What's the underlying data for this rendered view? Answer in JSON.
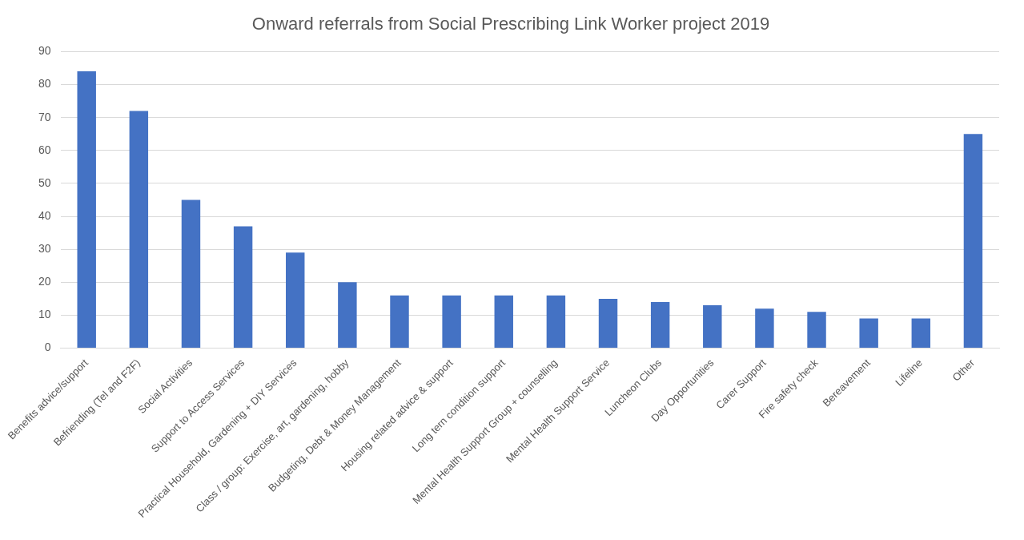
{
  "chart_data": {
    "type": "bar",
    "title": "Onward referrals from Social Prescribing Link Worker project 2019",
    "categories": [
      "Benefits advice/support",
      "Befriending (Tel and F2F)",
      "Social Activities",
      "Support to Access Services",
      "Practical Household, Gardening + DIY Services",
      "Class / group: Exercise, art, gardening, hobby",
      "Budgeting, Debt & Money Management",
      "Housing related advice & support",
      "Long tern condition support",
      "Mental Health Support Group + counselling",
      "Mental Health Support Service",
      "Luncheon Clubs",
      "Day Opportunities",
      "Carer Support",
      "Fire safety check",
      "Bereavement",
      "Lifeline",
      "Other"
    ],
    "values": [
      84,
      72,
      45,
      37,
      29,
      20,
      16,
      16,
      16,
      16,
      15,
      14,
      13,
      12,
      11,
      9,
      9,
      65
    ],
    "color": "#4472c4",
    "ylim": [
      0,
      90
    ],
    "yticks": [
      0,
      10,
      20,
      30,
      40,
      50,
      60,
      70,
      80,
      90
    ],
    "grid": "y",
    "legend": false
  }
}
